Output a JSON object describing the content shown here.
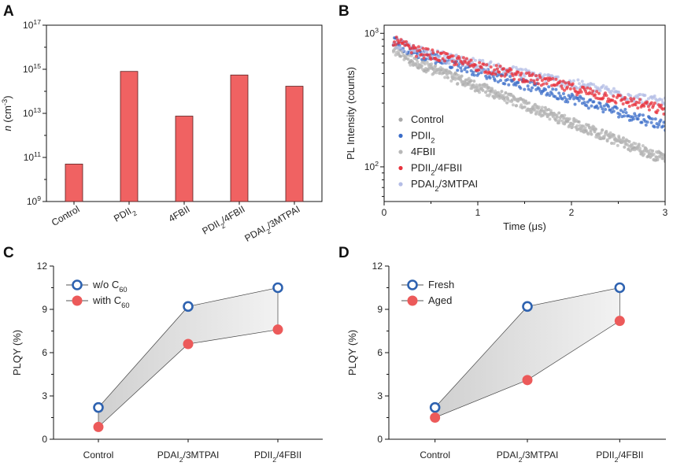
{
  "panel_labels": [
    "A",
    "B",
    "C",
    "D"
  ],
  "colors": {
    "bar": "#f06262",
    "bar_edge": "#5a2020",
    "control": "#a9a9a9",
    "pdii2": "#3a6cc8",
    "fourfbii": "#b8b8b8",
    "pdii2_4fbii": "#e8323c",
    "pdai2_3mtpai": "#b4bde6",
    "open_marker": "#2e62b0",
    "filled_marker": "#ec5a5a",
    "band": "#e4e4e4"
  },
  "chart_data": [
    {
      "type": "bar",
      "panel": "A",
      "ylabel_n": "n",
      "ylabel_unit": "(cm",
      "ylabel_exp": "-3",
      "ylabel_close": ")",
      "yscale": "log",
      "ylim": [
        1000000000.0,
        1e+17
      ],
      "yticks": [
        {
          "v": 9,
          "base": "10",
          "exp": "9"
        },
        {
          "v": 11,
          "base": "10",
          "exp": "11"
        },
        {
          "v": 13,
          "base": "10",
          "exp": "13"
        },
        {
          "v": 15,
          "base": "10",
          "exp": "15"
        },
        {
          "v": 17,
          "base": "10",
          "exp": "17"
        }
      ],
      "categories": [
        {
          "main": "Control",
          "sub": "",
          "rest": ""
        },
        {
          "main": "PDII",
          "sub": "2",
          "rest": ""
        },
        {
          "main": "4FBII",
          "sub": "",
          "rest": ""
        },
        {
          "main": "PDII",
          "sub": "2",
          "rest": "/4FBII"
        },
        {
          "main": "PDAI",
          "sub": "2",
          "rest": "/3MTPAI"
        }
      ],
      "values": [
        50000000000.0,
        800000000000000.0,
        7500000000000.0,
        550000000000000.0,
        170000000000000.0
      ]
    },
    {
      "type": "scatter",
      "panel": "B",
      "xlabel": "Time (μs)",
      "ylabel": "PL Intensity (counts)",
      "xlim": [
        0,
        3
      ],
      "xticks": [
        "0",
        "1",
        "2",
        "3"
      ],
      "yscale": "log",
      "ylim": [
        55,
        1150
      ],
      "yticks": [
        {
          "v": 100,
          "base": "10",
          "exp": "2"
        },
        {
          "v": 1000,
          "base": "10",
          "exp": "3"
        }
      ],
      "series": [
        {
          "main": "Control",
          "sub": "",
          "rest": "",
          "color": "#a9a9a9",
          "start": 700,
          "end": 115
        },
        {
          "main": "PDII",
          "sub": "2",
          "rest": "",
          "color": "#3a6cc8",
          "start": 800,
          "end": 205
        },
        {
          "main": "4FBII",
          "sub": "",
          "rest": "",
          "color": "#b8b8b8",
          "start": 700,
          "end": 115
        },
        {
          "main": "PDII",
          "sub": "2",
          "rest": "/4FBII",
          "color": "#e8323c",
          "start": 810,
          "end": 265
        },
        {
          "main": "PDAI",
          "sub": "2",
          "rest": "/3MTPAI",
          "color": "#b4bde6",
          "start": 800,
          "end": 300
        }
      ]
    },
    {
      "type": "line",
      "panel": "C",
      "ylabel": "PLQY (%)",
      "ylim": [
        0,
        12
      ],
      "yticks": [
        "0",
        "3",
        "6",
        "9",
        "12"
      ],
      "categories": [
        {
          "main": "Control",
          "sub": "",
          "rest": ""
        },
        {
          "main": "PDAI",
          "sub": "2",
          "rest": "/3MTPAI"
        },
        {
          "main": "PDII",
          "sub": "2",
          "rest": "/4FBII"
        }
      ],
      "series": [
        {
          "main": "w/o C",
          "sub": "60",
          "marker": "open",
          "values": [
            2.2,
            9.2,
            10.5
          ]
        },
        {
          "main": "with C",
          "sub": "60",
          "marker": "filled",
          "values": [
            0.85,
            6.6,
            7.6
          ]
        }
      ]
    },
    {
      "type": "line",
      "panel": "D",
      "ylabel": "PLQY (%)",
      "ylim": [
        0,
        12
      ],
      "yticks": [
        "0",
        "3",
        "6",
        "9",
        "12"
      ],
      "categories": [
        {
          "main": "Control",
          "sub": "",
          "rest": ""
        },
        {
          "main": "PDAI",
          "sub": "2",
          "rest": "/3MTPAI"
        },
        {
          "main": "PDII",
          "sub": "2",
          "rest": "/4FBII"
        }
      ],
      "series": [
        {
          "main": "Fresh",
          "sub": "",
          "marker": "open",
          "values": [
            2.2,
            9.2,
            10.5
          ]
        },
        {
          "main": "Aged",
          "sub": "",
          "marker": "filled",
          "values": [
            1.5,
            4.1,
            8.2
          ]
        }
      ]
    }
  ]
}
